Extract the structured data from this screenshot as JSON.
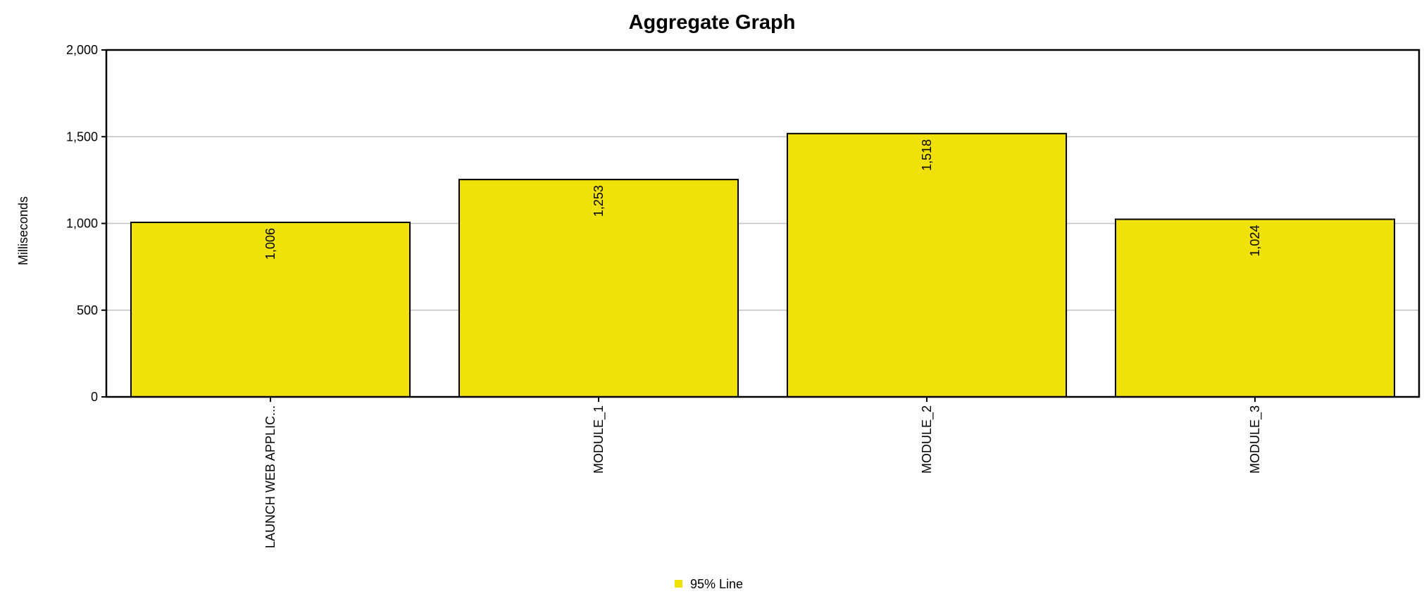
{
  "chart_data": {
    "type": "bar",
    "title": "Aggregate Graph",
    "xlabel": "",
    "ylabel": "Milliseconds",
    "ylim": [
      0,
      2000
    ],
    "yticks": [
      0,
      500,
      1000,
      1500,
      2000
    ],
    "ytick_labels": [
      "0",
      "500",
      "1,000",
      "1,500",
      "2,000"
    ],
    "grid": true,
    "categories": [
      "LAUNCH WEB APPLIC...",
      "MODULE_1",
      "MODULE_2",
      "MODULE_3"
    ],
    "series": [
      {
        "name": "95% Line",
        "values": [
          1006,
          1253,
          1518,
          1024
        ],
        "value_labels": [
          "1,006",
          "1,253",
          "1,518",
          "1,024"
        ],
        "color": "#f0e10a"
      }
    ],
    "legend_position": "bottom-center"
  }
}
